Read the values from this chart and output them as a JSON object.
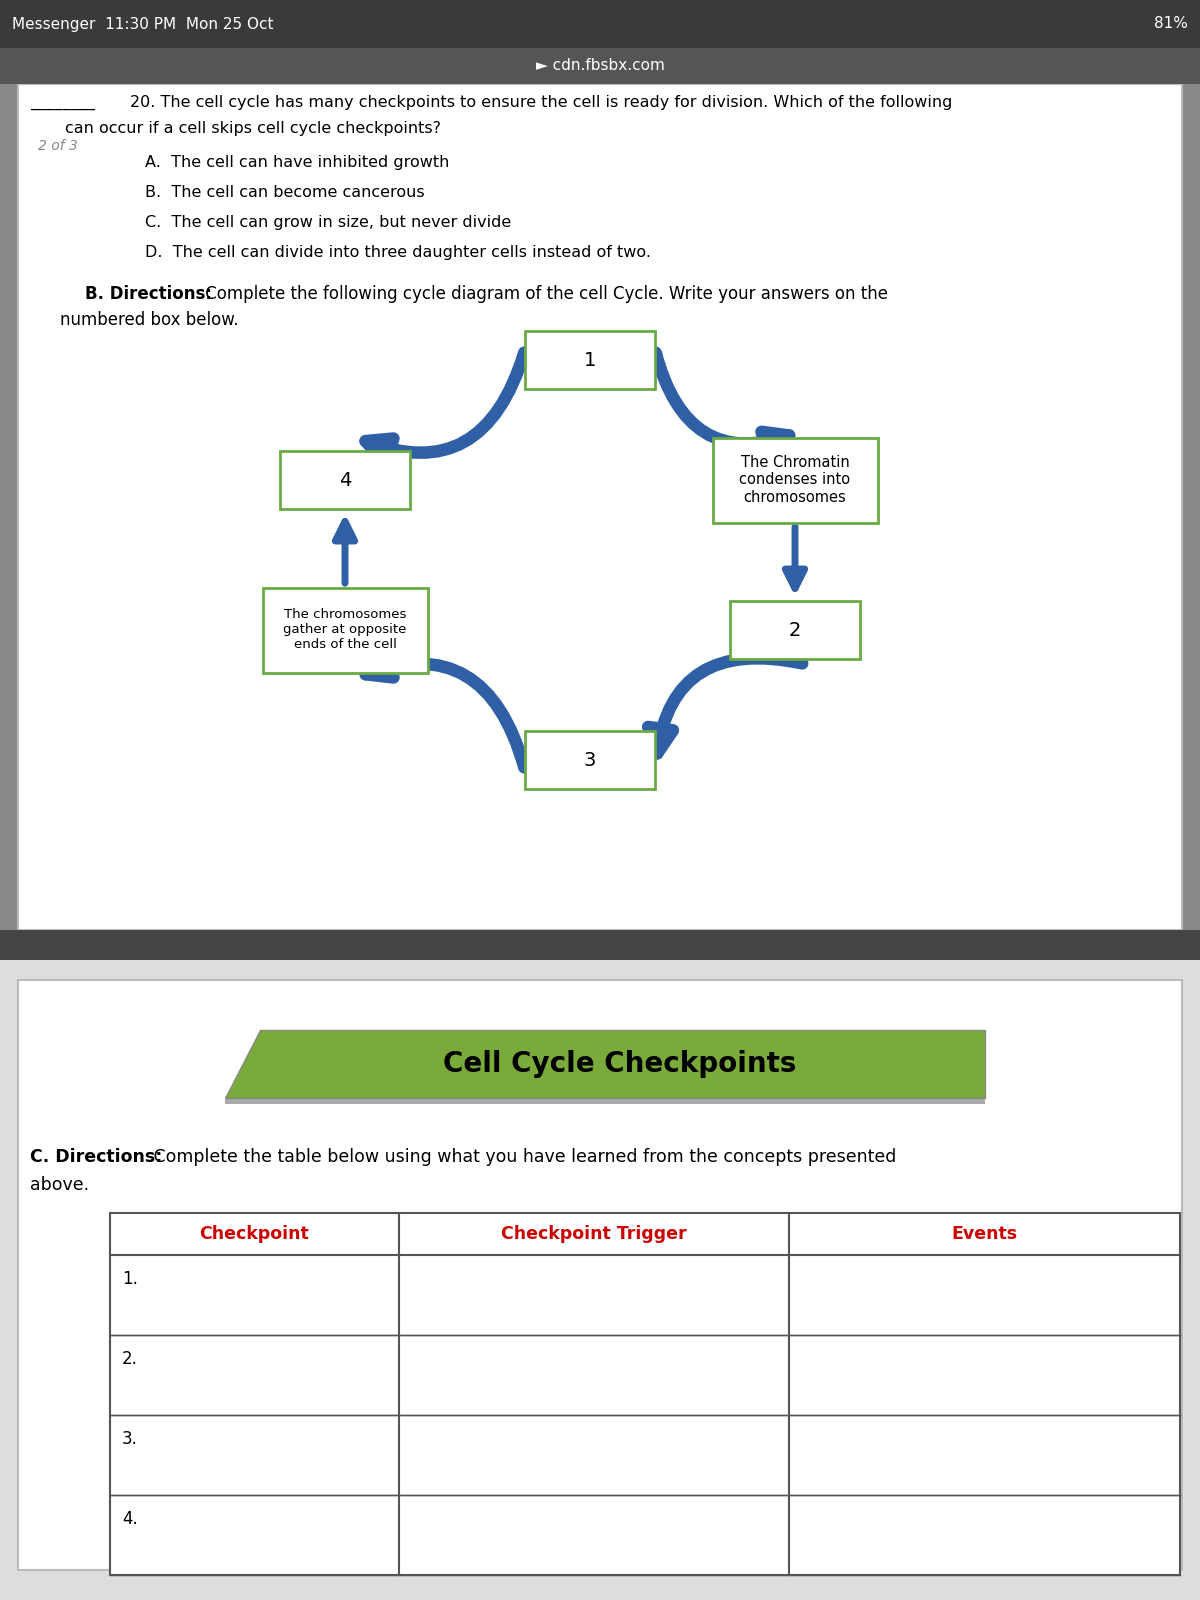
{
  "status_bar_bg": "#3a3a3a",
  "status_bar_text": "Messenger  11:30 PM  Mon 25 Oct",
  "status_bar_right": "81%",
  "url_bar_bg": "#555555",
  "url_bar_text": "cdn.fbsbx.com",
  "page_bg": "#888888",
  "content_bg": "#ffffff",
  "blank_line": "________",
  "page_indicator": "2 of 3",
  "q_line1": "20. The cell cycle has many checkpoints to ensure the cell is ready for division. Which of the following",
  "q_line2": "can occur if a cell skips cell cycle checkpoints?",
  "choices": [
    "A.  The cell can have inhibited growth",
    "B.  The cell can become cancerous",
    "C.  The cell can grow in size, but never divide",
    "D.  The cell can divide into three daughter cells instead of two."
  ],
  "sec_b_bold": "B. Directions:",
  "sec_b_rest": " Complete the following cycle diagram of the cell Cycle. Write your answers on the",
  "sec_b_line2": "numbered box below.",
  "box1_label": "1",
  "box2_label": "2",
  "box3_label": "3",
  "box4_label": "4",
  "box_chromatin_text": "The Chromatin\ncondenses into\nchromosomes",
  "box_chromosomes_text": "The chromosomes\ngather at opposite\nends of the cell",
  "arrow_color": "#2f5fa5",
  "box_border_color": "#6aaa44",
  "section_c_title": "Cell Cycle Checkpoints",
  "section_c_bg": "#7aaa3a",
  "sec_c_bold": "C. Directions:",
  "sec_c_rest": " Complete the table below using what you have learned from the concepts presented",
  "sec_c_line2": "above.",
  "table_header": [
    "Checkpoint",
    "Checkpoint Trigger",
    "Events"
  ],
  "table_header_color": "#cc0000",
  "table_rows": [
    "1.",
    "2.",
    "3.",
    "4."
  ],
  "table_border_color": "#555555",
  "separator_bg": "#444444",
  "second_page_bg": "#dddddd"
}
